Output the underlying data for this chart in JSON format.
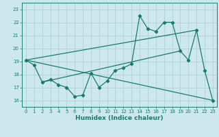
{
  "background_color": "#cce8ec",
  "line_color": "#1a7a6e",
  "grid_color": "#aacdd4",
  "xlabel": "Humidex (Indice chaleur)",
  "xlim": [
    -0.5,
    23.5
  ],
  "ylim": [
    15.5,
    23.5
  ],
  "yticks": [
    16,
    17,
    18,
    19,
    20,
    21,
    22,
    23
  ],
  "xticks": [
    0,
    1,
    2,
    3,
    4,
    5,
    6,
    7,
    8,
    9,
    10,
    11,
    12,
    13,
    14,
    15,
    16,
    17,
    18,
    19,
    20,
    21,
    22,
    23
  ],
  "jagged": {
    "x": [
      0,
      1,
      2,
      3,
      4,
      5,
      6,
      7,
      8,
      9,
      10,
      11,
      12,
      13,
      14,
      15,
      16,
      17,
      18,
      19,
      20,
      21,
      22,
      23
    ],
    "y": [
      19.1,
      18.7,
      17.4,
      17.6,
      17.2,
      17.0,
      16.3,
      16.4,
      18.1,
      17.0,
      17.5,
      18.3,
      18.5,
      18.8,
      22.5,
      21.5,
      21.3,
      22.0,
      22.0,
      19.8,
      19.1,
      21.4,
      18.3,
      16.0
    ]
  },
  "trend1": {
    "x": [
      0,
      23
    ],
    "y": [
      19.1,
      16.0
    ]
  },
  "trend2": {
    "x": [
      0,
      21
    ],
    "y": [
      19.1,
      21.4
    ]
  },
  "trend3": {
    "x": [
      2,
      19
    ],
    "y": [
      17.4,
      19.8
    ]
  }
}
